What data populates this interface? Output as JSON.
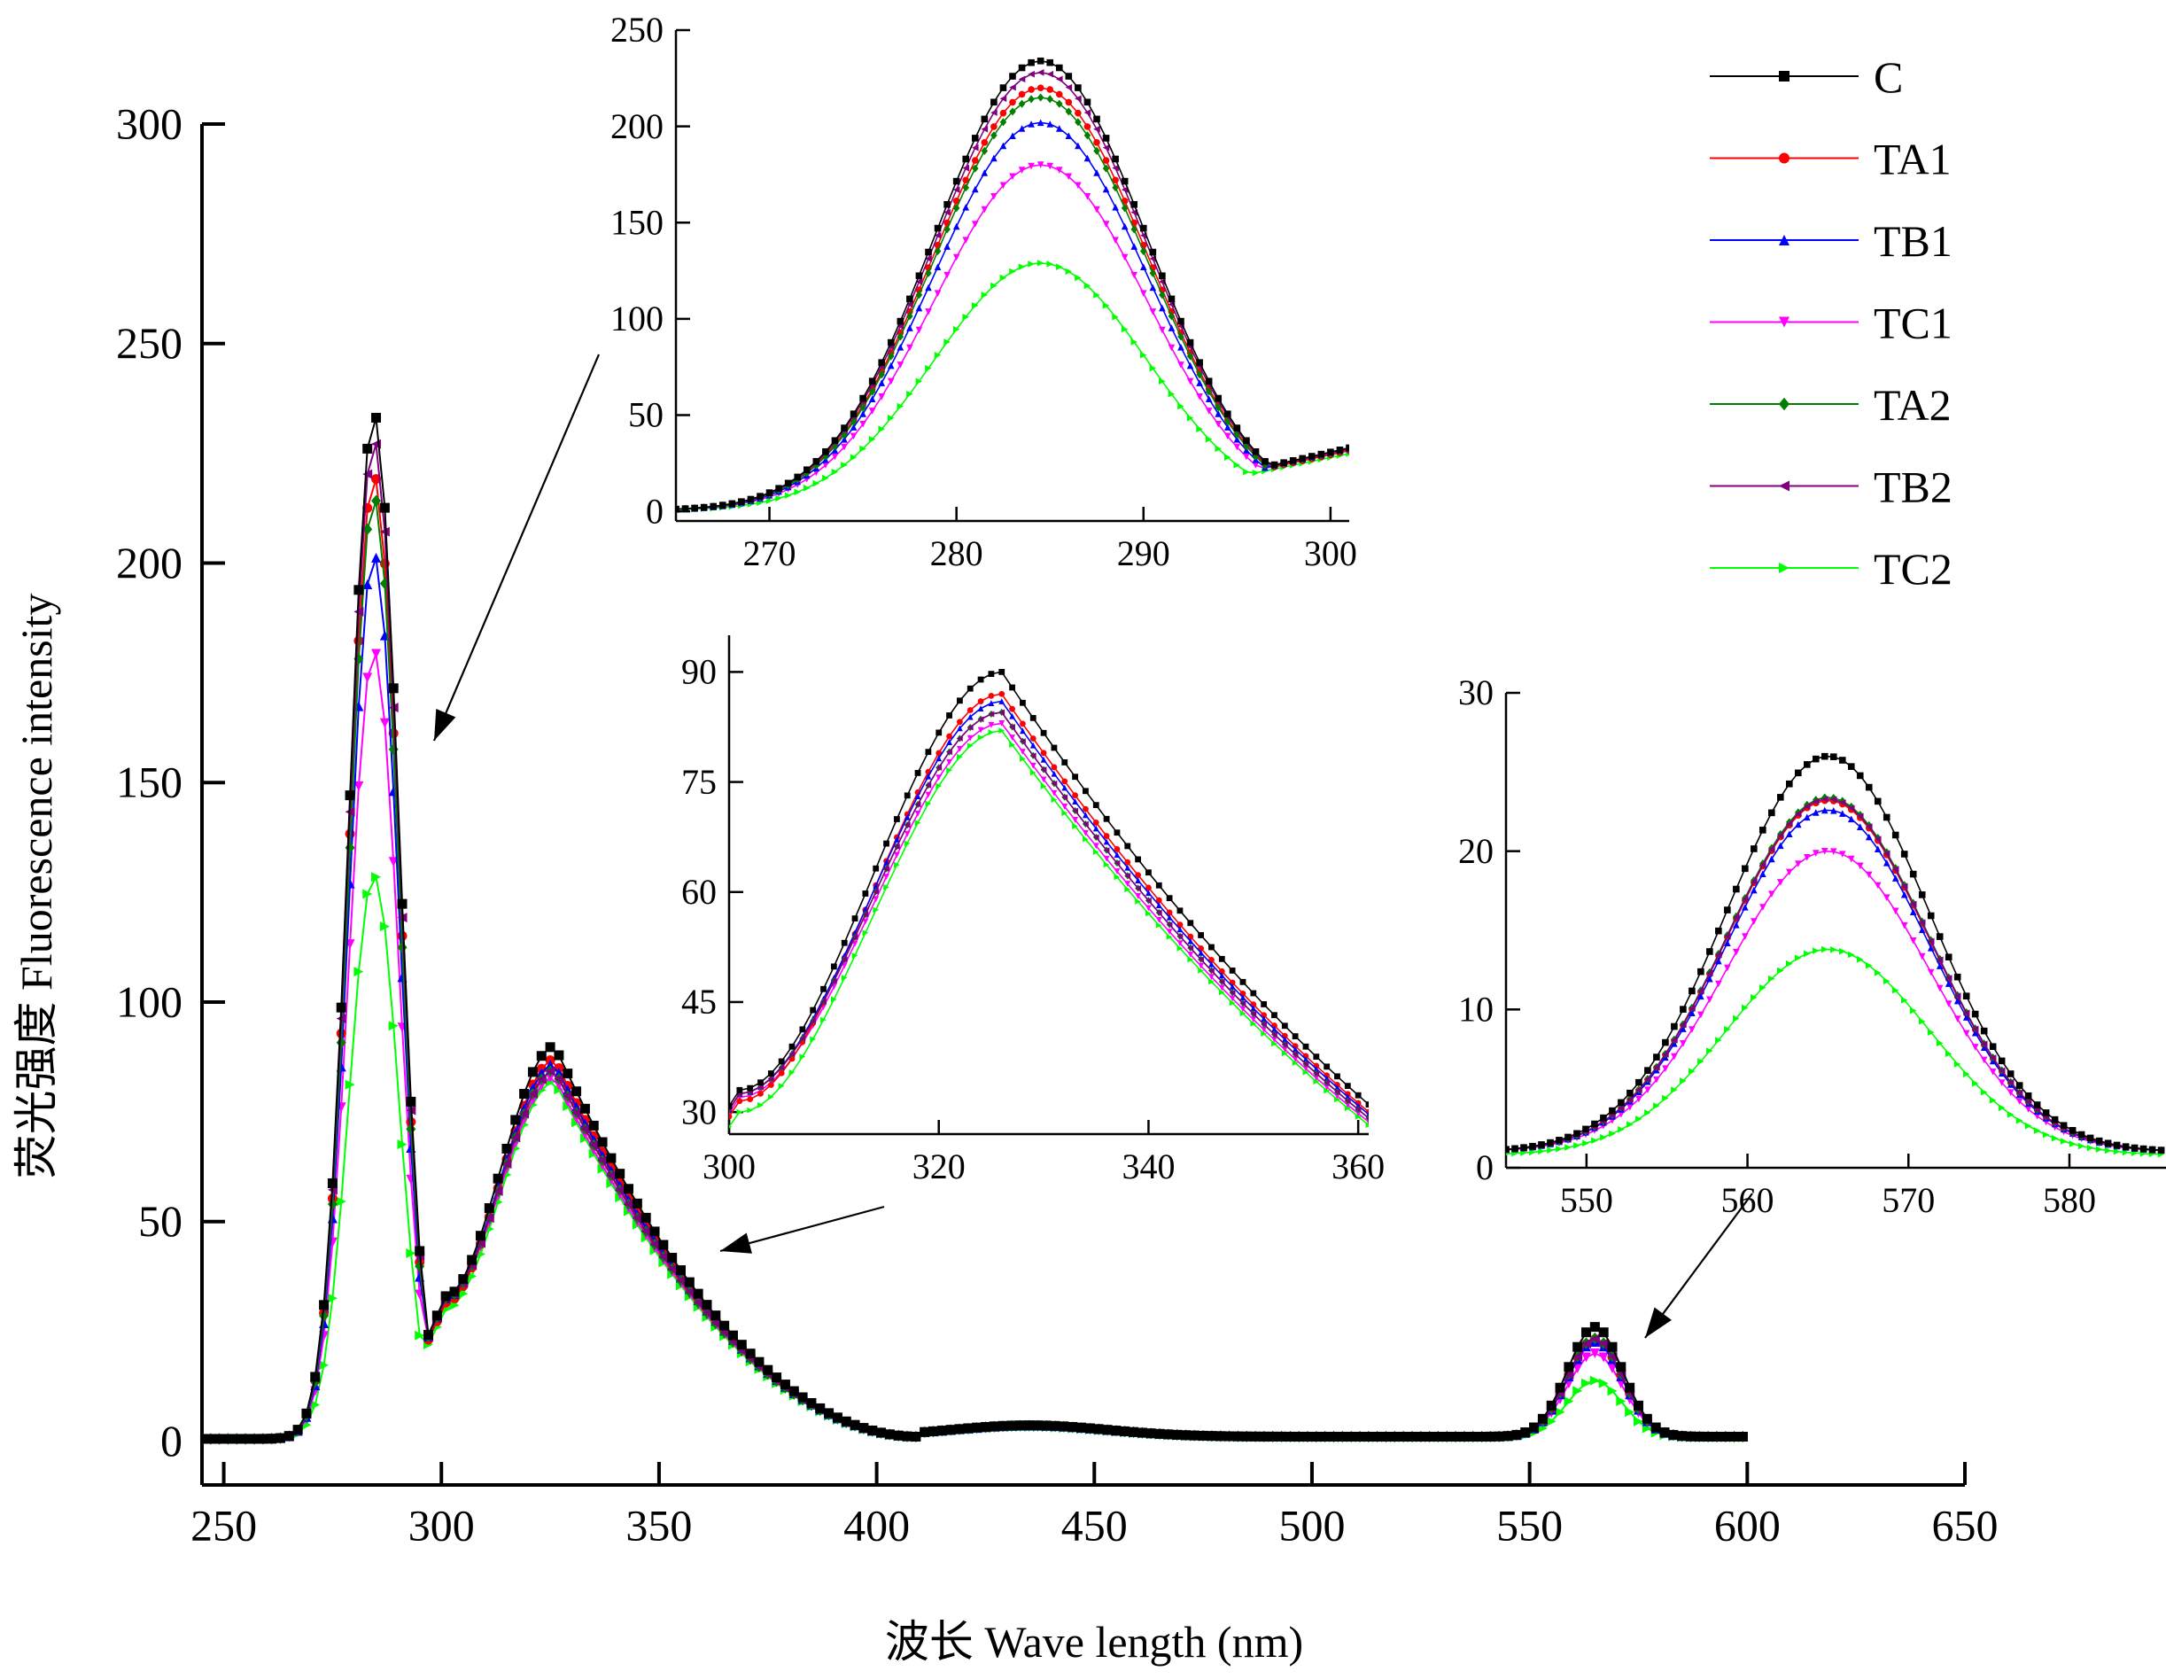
{
  "chart_data": [
    {
      "type": "line",
      "panel": "main",
      "xlabel": "波长 Wave length (nm)",
      "ylabel": "荧光强度 Fluorescence intensity",
      "xlim": [
        245,
        650
      ],
      "ylim": [
        -10,
        300
      ],
      "xticks": [
        250,
        300,
        350,
        400,
        450,
        500,
        550,
        600,
        650
      ],
      "yticks": [
        0,
        50,
        100,
        150,
        200,
        250,
        300
      ],
      "x_range": [
        245,
        600
      ],
      "markers": "dense",
      "grid": false,
      "series_ref": "legend.items",
      "peaks": {
        "x": [
          284.5,
          326,
          565
        ],
        "C": [
          234,
          90,
          26
        ],
        "TA1": [
          220,
          87,
          23.2
        ],
        "TB1": [
          202,
          86,
          22.6
        ],
        "TC1": [
          180,
          83,
          20
        ],
        "TA2": [
          215,
          84.5,
          23.4
        ],
        "TB2": [
          228,
          84.5,
          23.3
        ],
        "TC2": [
          129,
          82,
          13.8
        ]
      },
      "valley_300": [
        33,
        31.5,
        32.5,
        32,
        32.5,
        32.5,
        30
      ],
      "valley_410": [
        1,
        1,
        1,
        1,
        1,
        1,
        0.8
      ],
      "hump_435": [
        3.6,
        3.5,
        3.5,
        3.4,
        3.5,
        3.5,
        3.2
      ],
      "baseline_420_560": [
        1,
        1,
        1,
        1,
        1,
        1,
        0.8
      ]
    },
    {
      "type": "line",
      "panel": "inset-1",
      "xlim": [
        265,
        301
      ],
      "ylim": [
        -5,
        250
      ],
      "xticks": [
        270,
        280,
        290,
        300
      ],
      "yticks": [
        0,
        50,
        100,
        150,
        200,
        250
      ],
      "peak_x": 284.5,
      "peak_values": [
        234,
        220,
        202,
        180,
        215,
        228,
        129
      ]
    },
    {
      "type": "line",
      "panel": "inset-2",
      "xlim": [
        300,
        361
      ],
      "ylim": [
        27,
        95
      ],
      "xticks": [
        300,
        320,
        340,
        360
      ],
      "yticks": [
        30,
        45,
        60,
        75,
        90
      ],
      "peak_x": 326,
      "peak_values": [
        90,
        87,
        86,
        83,
        84.5,
        84.5,
        82
      ]
    },
    {
      "type": "line",
      "panel": "inset-3",
      "xlim": [
        545,
        586
      ],
      "ylim": [
        0,
        30
      ],
      "xticks": [
        550,
        560,
        570,
        580
      ],
      "yticks": [
        0,
        10,
        20,
        30
      ],
      "peak_x": 565,
      "peak_values": [
        26,
        23.2,
        22.6,
        20,
        23.4,
        23.3,
        13.8
      ]
    }
  ],
  "legend": {
    "position": "top-right",
    "items": [
      {
        "name": "C",
        "color": "#000000",
        "marker": "square"
      },
      {
        "name": "TA1",
        "color": "#ff0000",
        "marker": "circle"
      },
      {
        "name": "TB1",
        "color": "#0000ff",
        "marker": "triangle-up"
      },
      {
        "name": "TC1",
        "color": "#ff00ff",
        "marker": "triangle-down"
      },
      {
        "name": "TA2",
        "color": "#008000",
        "marker": "diamond"
      },
      {
        "name": "TB2",
        "color": "#800080",
        "marker": "triangle-left"
      },
      {
        "name": "TC2",
        "color": "#00ff00",
        "marker": "triangle-right"
      }
    ]
  }
}
